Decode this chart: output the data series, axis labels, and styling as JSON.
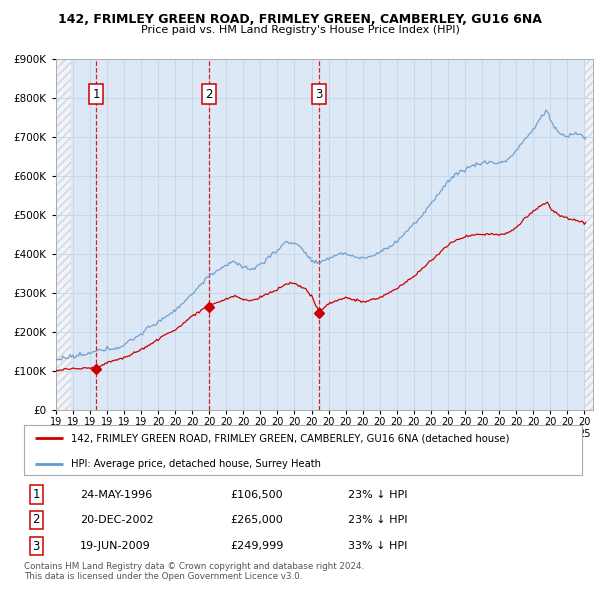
{
  "title1": "142, FRIMLEY GREEN ROAD, FRIMLEY GREEN, CAMBERLEY, GU16 6NA",
  "title2": "Price paid vs. HM Land Registry's House Price Index (HPI)",
  "ylim": [
    0,
    900000
  ],
  "yticks": [
    0,
    100000,
    200000,
    300000,
    400000,
    500000,
    600000,
    700000,
    800000,
    900000
  ],
  "ytick_labels": [
    "£0",
    "£100K",
    "£200K",
    "£300K",
    "£400K",
    "£500K",
    "£600K",
    "£700K",
    "£800K",
    "£900K"
  ],
  "sales": [
    {
      "date_num": 1996.38,
      "price": 106500,
      "label": "1"
    },
    {
      "date_num": 2002.97,
      "price": 265000,
      "label": "2"
    },
    {
      "date_num": 2009.46,
      "price": 249999,
      "label": "3"
    }
  ],
  "sale_color": "#cc0000",
  "hpi_color": "#6699cc",
  "vline_color": "#cc0000",
  "grid_color": "#c8d8e8",
  "bg_color": "#dce8f5",
  "legend_line1": "142, FRIMLEY GREEN ROAD, FRIMLEY GREEN, CAMBERLEY, GU16 6NA (detached house)",
  "legend_line2": "HPI: Average price, detached house, Surrey Heath",
  "table_rows": [
    {
      "num": "1",
      "date": "24-MAY-1996",
      "price": "£106,500",
      "hpi": "23% ↓ HPI"
    },
    {
      "num": "2",
      "date": "20-DEC-2002",
      "price": "£265,000",
      "hpi": "23% ↓ HPI"
    },
    {
      "num": "3",
      "date": "19-JUN-2009",
      "price": "£249,999",
      "hpi": "33% ↓ HPI"
    }
  ],
  "footnote": "Contains HM Land Registry data © Crown copyright and database right 2024.\nThis data is licensed under the Open Government Licence v3.0.",
  "xlim_start": 1994.0,
  "xlim_end": 2025.5
}
